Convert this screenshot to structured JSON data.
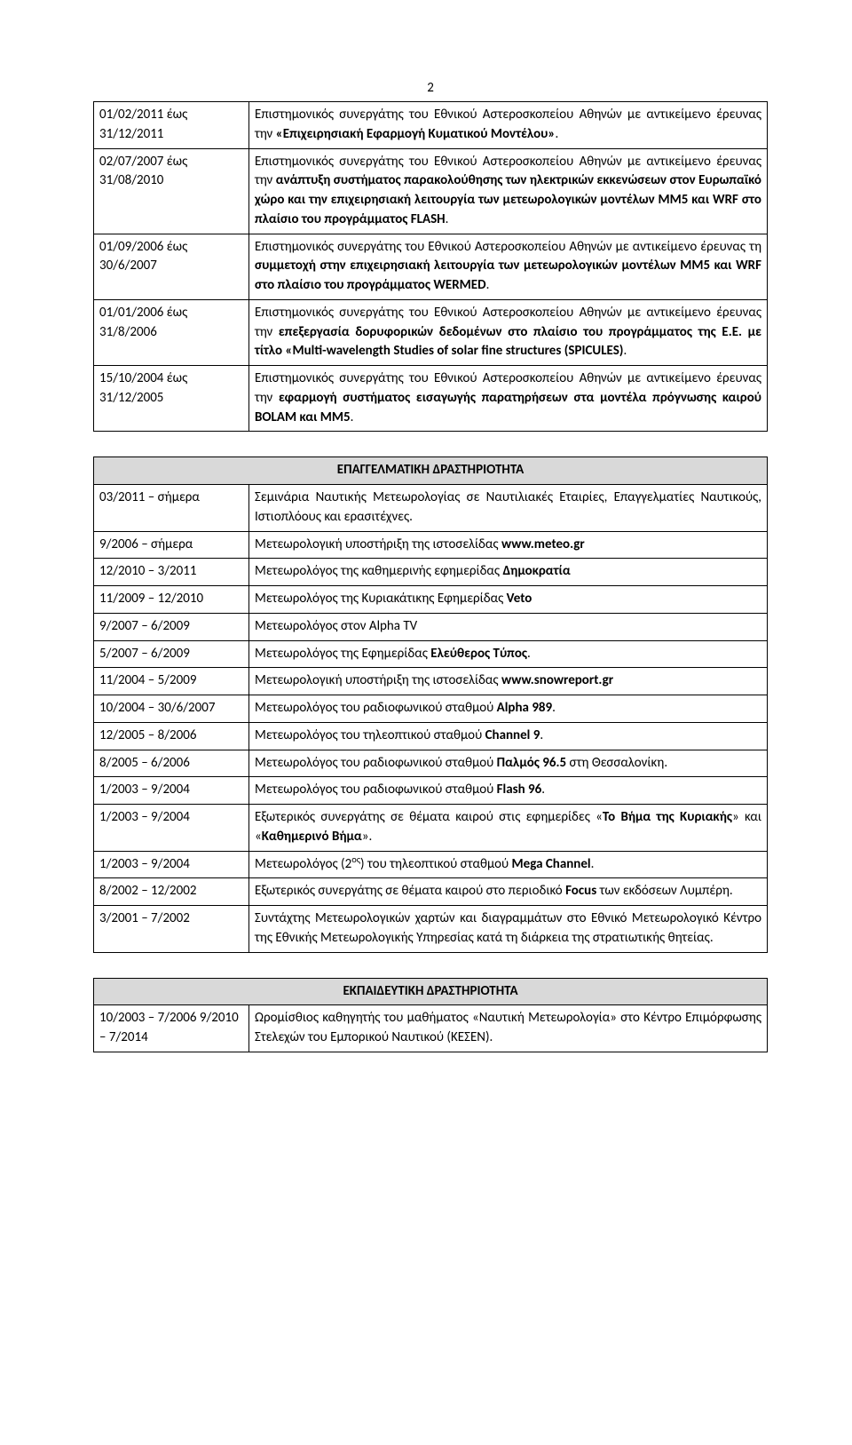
{
  "page_number": "2",
  "colors": {
    "header_bg": "#d9d9d9",
    "text": "#000000",
    "border": "#000000",
    "page_bg": "#ffffff"
  },
  "table1": {
    "rows": [
      {
        "date": "01/02/2011 έως 31/12/2011",
        "desc_pre": "Επιστημονικός συνεργάτης του Εθνικού Αστεροσκοπείου Αθηνών με αντικείμενο έρευνας την ",
        "bold": "«Επιχειρησιακή Εφαρμογή Κυματικού Μοντέλου»",
        "desc_post": "."
      },
      {
        "date": "02/07/2007 έως 31/08/2010",
        "desc_pre": "Επιστημονικός συνεργάτης του Εθνικού Αστεροσκοπείου Αθηνών με αντικείμενο έρευνας την ",
        "bold": "ανάπτυξη συστήματος παρακολούθησης των ηλεκτρικών εκκενώσεων στον Ευρωπαϊκό χώρο και την επιχειρησιακή λειτουργία των μετεωρολογικών μοντέλων MM5 και WRF στο πλαίσιο του προγράμματος FLASH",
        "desc_post": "."
      },
      {
        "date": "01/09/2006 έως 30/6/2007",
        "desc_pre": "Επιστημονικός συνεργάτης του Εθνικού Αστεροσκοπείου Αθηνών με αντικείμενο έρευνας τη ",
        "bold": "συμμετοχή στην επιχειρησιακή λειτουργία των μετεωρολογικών μοντέλων MM5 και WRF στο πλαίσιο του προγράμματος WERMED",
        "desc_post": "."
      },
      {
        "date": "01/01/2006 έως 31/8/2006",
        "desc_pre": "Επιστημονικός συνεργάτης του Εθνικού Αστεροσκοπείου Αθηνών με αντικείμενο έρευνας την ",
        "bold": "επεξεργασία δορυφορικών δεδομένων στο πλαίσιο του προγράμματος της Ε.Ε. με τίτλο «Multi-wavelength Studies of solar fine structures (SPICULES)",
        "desc_post": "."
      },
      {
        "date": "15/10/2004 έως 31/12/2005",
        "desc_pre": "Επιστημονικός συνεργάτης του Εθνικού Αστεροσκοπείου Αθηνών με αντικείμενο έρευνας την ",
        "bold": "εφαρμογή συστήματος εισαγωγής παρατηρήσεων στα μοντέλα πρόγνωσης καιρού BOLAM και MM5",
        "desc_post": "."
      }
    ]
  },
  "table2": {
    "header": "ΕΠΑΓΓΕΛΜΑΤΙΚΗ  ΔΡΑΣΤΗΡΙΟΤΗΤΑ",
    "rows": [
      {
        "date": "03/2011 – σήμερα",
        "desc": "Σεμινάρια Ναυτικής Μετεωρολογίας σε Ναυτιλιακές Εταιρίες, Επαγγελματίες Ναυτικούς, Ιστιοπλόους και ερασιτέχνες."
      },
      {
        "date": "9/2006 – σήμερα",
        "desc_pre": "Μετεωρολογική υποστήριξη της ιστοσελίδας ",
        "bold": "www.meteo.gr"
      },
      {
        "date": "12/2010 – 3/2011",
        "desc_pre": "Μετεωρολόγος της καθημερινής εφημερίδας ",
        "bold": "Δημοκρατία"
      },
      {
        "date": "11/2009 – 12/2010",
        "desc_pre": "Μετεωρολόγος της Κυριακάτικης Εφημερίδας ",
        "bold": "Veto"
      },
      {
        "date": "9/2007 – 6/2009",
        "desc": "Μετεωρολόγος στον Alpha TV"
      },
      {
        "date": "5/2007 – 6/2009",
        "desc_pre": "Μετεωρολόγος της Εφημερίδας ",
        "bold": "Ελεύθερος Τύπος",
        "desc_post": "."
      },
      {
        "date": "11/2004 – 5/2009",
        "desc_pre": "Μετεωρολογική υποστήριξη της ιστοσελίδας ",
        "bold": "www.snowreport.gr"
      },
      {
        "date": "10/2004 – 30/6/2007",
        "desc_pre": "Μετεωρολόγος του ραδιοφωνικού σταθμού  ",
        "bold": "Alpha 989",
        "desc_post": "."
      },
      {
        "date": "12/2005 – 8/2006",
        "desc_pre": "Μετεωρολόγος του τηλεοπτικού σταθμού  ",
        "bold": "Channel 9",
        "desc_post": "."
      },
      {
        "date": "8/2005 – 6/2006",
        "desc_pre": "Μετεωρολόγος του ραδιοφωνικού σταθμού ",
        "bold": "Παλμός 96.5",
        "desc_post": " στη Θεσσαλονίκη."
      },
      {
        "date": "1/2003 – 9/2004",
        "desc_pre": "Μετεωρολόγος του ραδιοφωνικού σταθμού  ",
        "bold": "Flash 96",
        "desc_post": "."
      },
      {
        "date": "1/2003 – 9/2004",
        "desc_pre": "Εξωτερικός συνεργάτης σε θέματα καιρού στις εφημερίδες «",
        "bold": "Το Βήμα της Κυριακής",
        "desc_mid": "» και «",
        "bold2": "Καθημερινό Βήμα",
        "desc_post": "»."
      },
      {
        "date": "1/2003 – 9/2004",
        "desc_pre": "Μετεωρολόγος (2",
        "sup": "ος",
        "desc_mid": ") του τηλεοπτικού σταθμού ",
        "bold": "Mega Channel",
        "desc_post": "."
      },
      {
        "date": "8/2002 – 12/2002",
        "desc_pre": "Εξωτερικός συνεργάτης σε θέματα καιρού στο περιοδικό ",
        "bold": "Focus",
        "desc_post": " των εκδόσεων Λυμπέρη."
      },
      {
        "date": "3/2001 – 7/2002",
        "desc": "Συντάχτης Μετεωρολογικών χαρτών και διαγραμμάτων στο Εθνικό Μετεωρολογικό Κέντρο της Εθνικής Μετεωρολογικής Υπηρεσίας κατά τη διάρκεια της στρατιωτικής θητείας."
      }
    ]
  },
  "table3": {
    "header": "ΕΚΠΑΙΔΕΥΤΙΚΗ ΔΡΑΣΤΗΡΙΟΤΗΤΑ",
    "rows": [
      {
        "date": "10/2003 – 7/2006 9/2010 – 7/2014",
        "desc": "Ωρομίσθιος καθηγητής του μαθήματος «Ναυτική Μετεωρολογία» στο Κέντρο Επιμόρφωσης Στελεχών του Εμπορικού Ναυτικού (ΚΕΣΕΝ)."
      }
    ]
  }
}
